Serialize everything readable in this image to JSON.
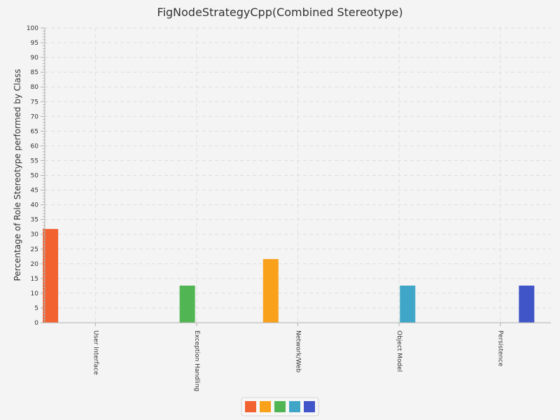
{
  "chart_data": {
    "type": "bar",
    "title": "FigNodeStrategyCpp(Combined Stereotype)",
    "xlabel": "",
    "ylabel": "Percentage of Role Stereotype performed by Class",
    "ylim": [
      0,
      100
    ],
    "ytick_step": 5,
    "grid": true,
    "legend_position": "bottom",
    "categories": [
      "User Interface",
      "Exception Handling",
      "Network/Web",
      "Object Model",
      "Persistence"
    ],
    "series": [
      {
        "color": "#f26231",
        "values": [
          31.8,
          0,
          0,
          0,
          0
        ]
      },
      {
        "color": "#f9a11b",
        "values": [
          0,
          0,
          21.6,
          0,
          0
        ]
      },
      {
        "color": "#52b553",
        "values": [
          0,
          12.6,
          0,
          0,
          0
        ]
      },
      {
        "color": "#3fa6c8",
        "values": [
          0,
          0,
          0,
          12.6,
          0
        ]
      },
      {
        "color": "#4055c7",
        "values": [
          0,
          0,
          0,
          0,
          12.6
        ]
      }
    ]
  }
}
